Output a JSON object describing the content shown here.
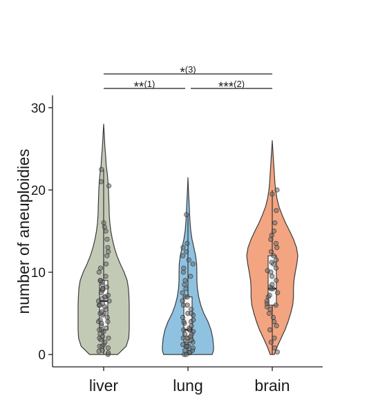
{
  "chart_data": {
    "type": "violin",
    "title": "",
    "xlabel": "",
    "ylabel": "number of aneuploidies",
    "ylim": [
      -1.5,
      31.5
    ],
    "yticks": [
      "0",
      "10",
      "20",
      "30"
    ],
    "grid": false,
    "legend": "none",
    "categories": [
      "liver",
      "lung",
      "brain"
    ],
    "series": [
      {
        "category": "liver",
        "color": "#c2cab6",
        "min": 0,
        "max": 28,
        "box": {
          "q1": 3,
          "median": 6.5,
          "q3": 9,
          "whisker_low": 0,
          "whisker_high": 22.5
        },
        "density": [
          [
            0,
            0.55
          ],
          [
            1,
            0.88
          ],
          [
            2,
            0.98
          ],
          [
            3,
            1.0
          ],
          [
            4,
            1.0
          ],
          [
            5,
            1.0
          ],
          [
            6,
            1.0
          ],
          [
            7,
            0.99
          ],
          [
            8,
            0.97
          ],
          [
            9,
            0.92
          ],
          [
            10,
            0.8
          ],
          [
            11,
            0.65
          ],
          [
            12,
            0.52
          ],
          [
            13,
            0.42
          ],
          [
            14,
            0.34
          ],
          [
            15,
            0.28
          ],
          [
            16,
            0.24
          ],
          [
            17,
            0.22
          ],
          [
            18,
            0.21
          ],
          [
            19,
            0.2
          ],
          [
            20,
            0.19
          ],
          [
            21,
            0.17
          ],
          [
            22,
            0.14
          ],
          [
            23,
            0.1
          ],
          [
            24,
            0.08
          ],
          [
            25,
            0.055
          ],
          [
            26,
            0.035
          ],
          [
            27,
            0.018
          ],
          [
            28,
            0
          ]
        ],
        "points": [
          0,
          0.2,
          0.4,
          0.5,
          0.8,
          1,
          1,
          1.2,
          1.5,
          1.8,
          2,
          2,
          2.2,
          2.5,
          2.8,
          3,
          3,
          3.2,
          3.5,
          3.8,
          4,
          4,
          4.2,
          4.5,
          4.8,
          5,
          5,
          5.2,
          5.5,
          5.8,
          6,
          6,
          6.2,
          6.5,
          6.5,
          6.8,
          7,
          7,
          7.2,
          7.5,
          7.8,
          8,
          8,
          8.2,
          8.5,
          8.8,
          9,
          9,
          9.5,
          10,
          10.5,
          11,
          12,
          12.5,
          13,
          14,
          15,
          15.5,
          16,
          20.5,
          21,
          22.5
        ]
      },
      {
        "category": "lung",
        "color": "#8fc2e0",
        "min": 0,
        "max": 21.5,
        "box": {
          "q1": 1.5,
          "median": 3,
          "q3": 7,
          "whisker_low": 0,
          "whisker_high": 17
        },
        "density": [
          [
            0,
            0.95
          ],
          [
            0.5,
            1.0
          ],
          [
            1,
            1.0
          ],
          [
            2,
            0.97
          ],
          [
            3,
            0.9
          ],
          [
            4,
            0.78
          ],
          [
            5,
            0.62
          ],
          [
            6,
            0.5
          ],
          [
            7,
            0.42
          ],
          [
            8,
            0.37
          ],
          [
            9,
            0.35
          ],
          [
            10,
            0.35
          ],
          [
            11,
            0.34
          ],
          [
            12,
            0.3
          ],
          [
            13,
            0.23
          ],
          [
            14,
            0.16
          ],
          [
            15,
            0.11
          ],
          [
            16,
            0.085
          ],
          [
            17,
            0.065
          ],
          [
            18,
            0.05
          ],
          [
            19,
            0.035
          ],
          [
            20,
            0.02
          ],
          [
            21.5,
            0
          ]
        ],
        "points": [
          0,
          0,
          0.2,
          0.3,
          0.5,
          0.5,
          0.8,
          1,
          1,
          1,
          1.2,
          1.5,
          1.5,
          1.8,
          2,
          2,
          2,
          2.2,
          2.5,
          2.5,
          2.8,
          3,
          3,
          3,
          3.2,
          3.5,
          3.8,
          4,
          4,
          4.2,
          4.5,
          4.8,
          5,
          5,
          5.5,
          6,
          6,
          6.5,
          7,
          7,
          7.5,
          8,
          8.5,
          9,
          9.5,
          10,
          10.5,
          11,
          11.5,
          12,
          12.5,
          13,
          13.5,
          17
        ]
      },
      {
        "category": "brain",
        "color": "#f3a481",
        "min": 0,
        "max": 26,
        "box": {
          "q1": 6,
          "median": 8,
          "q3": 12,
          "whisker_low": 0,
          "whisker_high": 20
        },
        "density": [
          [
            0,
            0.08
          ],
          [
            1,
            0.2
          ],
          [
            2,
            0.35
          ],
          [
            3,
            0.5
          ],
          [
            4,
            0.62
          ],
          [
            5,
            0.72
          ],
          [
            6,
            0.8
          ],
          [
            7,
            0.83
          ],
          [
            8,
            0.83
          ],
          [
            9,
            0.85
          ],
          [
            10,
            0.9
          ],
          [
            11,
            0.96
          ],
          [
            12,
            1.0
          ],
          [
            13,
            0.95
          ],
          [
            14,
            0.83
          ],
          [
            15,
            0.68
          ],
          [
            16,
            0.52
          ],
          [
            17,
            0.38
          ],
          [
            18,
            0.26
          ],
          [
            19,
            0.18
          ],
          [
            20,
            0.13
          ],
          [
            21,
            0.1
          ],
          [
            22,
            0.08
          ],
          [
            23,
            0.06
          ],
          [
            24,
            0.04
          ],
          [
            25,
            0.02
          ],
          [
            26,
            0
          ]
        ],
        "points": [
          0.3,
          0.8,
          1.5,
          2,
          3,
          3.5,
          4,
          4.5,
          5,
          5.5,
          5.8,
          6,
          6.2,
          6.5,
          7,
          7.2,
          7.5,
          8,
          8,
          8.2,
          8.5,
          9,
          9.5,
          10,
          10.2,
          10.5,
          11,
          11.2,
          11.5,
          12,
          12.5,
          13,
          13.5,
          14,
          14.5,
          15,
          16,
          17.5,
          19.5,
          20
        ]
      }
    ],
    "annotations": [
      {
        "from": "liver",
        "to": "brain",
        "stars": "*",
        "note": "(3)"
      },
      {
        "from": "liver",
        "to": "lung",
        "stars": "**",
        "note": "(1)"
      },
      {
        "from": "lung",
        "to": "brain",
        "stars": "***",
        "note": "(2)"
      }
    ]
  }
}
